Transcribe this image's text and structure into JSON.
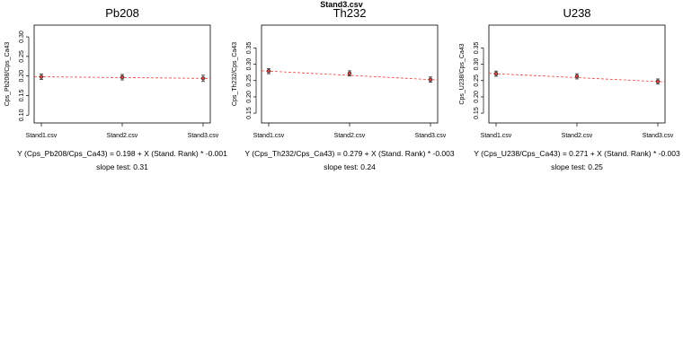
{
  "figure_title": "Stand3.csv",
  "chart_data": [
    {
      "type": "scatter",
      "title": "Pb208",
      "xlabel": "",
      "ylabel": "Cps_Pb208/Cps_Ca43",
      "categories": [
        "Stand1.csv",
        "Stand2.csv",
        "Stand3.csv"
      ],
      "x": [
        1,
        2,
        3
      ],
      "values": [
        0.198,
        0.197,
        0.194
      ],
      "error_low": [
        0.191,
        0.19,
        0.186
      ],
      "error_high": [
        0.205,
        0.204,
        0.202
      ],
      "ylim": [
        0.08,
        0.33
      ],
      "yticks": [
        0.1,
        0.15,
        0.2,
        0.25,
        0.3
      ],
      "ytick_labels": [
        "0.10",
        "0.15",
        "0.20",
        "0.25",
        "0.30"
      ],
      "fit": {
        "intercept": 0.198,
        "slope": -0.001
      },
      "fit_color": "#e8413c",
      "point_color": "#000000",
      "equation": "Y (Cps_Pb208/Cps_Ca43) = 0.198 + X (Stand. Rank) * -0.001",
      "slope_test": "slope test: 0.31"
    },
    {
      "type": "scatter",
      "title": "Th232",
      "xlabel": "",
      "ylabel": "Cps_Th232/Cps_Ca43",
      "categories": [
        "Stand1.csv",
        "Stand2.csv",
        "Stand3.csv"
      ],
      "x": [
        1,
        2,
        3
      ],
      "values": [
        0.279,
        0.272,
        0.253
      ],
      "error_low": [
        0.271,
        0.264,
        0.245
      ],
      "error_high": [
        0.287,
        0.28,
        0.261
      ],
      "ylim": [
        0.12,
        0.42
      ],
      "yticks": [
        0.15,
        0.2,
        0.25,
        0.3,
        0.35
      ],
      "ytick_labels": [
        "0.15",
        "0.20",
        "0.25",
        "0.30",
        "0.35"
      ],
      "fit": {
        "intercept": 0.279,
        "slope": -0.003
      },
      "fit_color": "#e8413c",
      "point_color": "#000000",
      "equation": "Y (Cps_Th232/Cps_Ca43) = 0.279 + X (Stand. Rank) * -0.003",
      "slope_test": "slope test: 0.24"
    },
    {
      "type": "scatter",
      "title": "U238",
      "xlabel": "",
      "ylabel": "Cps_U238/Cps_Ca43",
      "categories": [
        "Stand1.csv",
        "Stand2.csv",
        "Stand3.csv"
      ],
      "x": [
        1,
        2,
        3
      ],
      "values": [
        0.271,
        0.263,
        0.247
      ],
      "error_low": [
        0.263,
        0.255,
        0.239
      ],
      "error_high": [
        0.279,
        0.271,
        0.255
      ],
      "ylim": [
        0.12,
        0.42
      ],
      "yticks": [
        0.15,
        0.2,
        0.25,
        0.3,
        0.35
      ],
      "ytick_labels": [
        "0.15",
        "0.20",
        "0.25",
        "0.30",
        "0.35"
      ],
      "fit": {
        "intercept": 0.271,
        "slope": -0.003
      },
      "fit_color": "#e8413c",
      "point_color": "#000000",
      "equation": "Y (Cps_U238/Cps_Ca43) = 0.271 + X (Stand. Rank) * -0.003",
      "slope_test": "slope test: 0.25"
    }
  ]
}
